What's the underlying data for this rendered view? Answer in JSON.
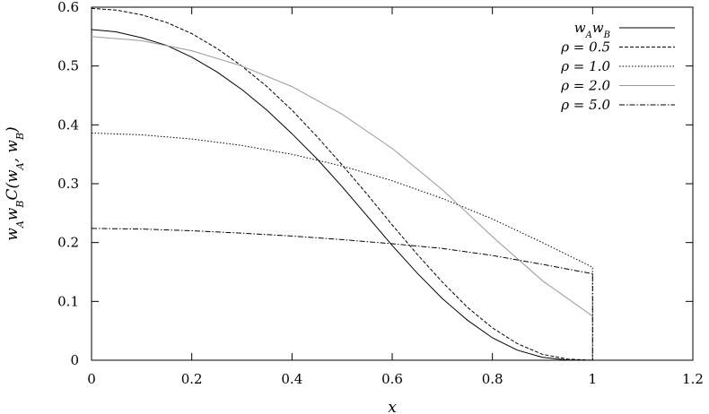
{
  "chart_data": {
    "type": "line",
    "title": "",
    "xlabel": "x",
    "ylabel": "w_A w_B C(w_A, w_B)",
    "xlim": [
      0,
      1.2
    ],
    "ylim": [
      0,
      0.6
    ],
    "xticks": [
      "0",
      "0.2",
      "0.4",
      "0.6",
      "0.8",
      "1",
      "1.2"
    ],
    "yticks": [
      "0",
      "0.1",
      "0.2",
      "0.3",
      "0.4",
      "0.5",
      "0.6"
    ],
    "grid": false,
    "legend_position": "top-right",
    "series": [
      {
        "name": "w_A w_B",
        "style": "solid",
        "color": "#000000",
        "x": [
          0,
          0.05,
          0.1,
          0.15,
          0.2,
          0.25,
          0.3,
          0.35,
          0.4,
          0.45,
          0.5,
          0.55,
          0.6,
          0.65,
          0.7,
          0.75,
          0.8,
          0.85,
          0.9,
          0.95,
          1.0
        ],
        "y": [
          0.562,
          0.558,
          0.548,
          0.535,
          0.515,
          0.49,
          0.46,
          0.425,
          0.385,
          0.342,
          0.295,
          0.245,
          0.195,
          0.148,
          0.105,
          0.068,
          0.038,
          0.017,
          0.005,
          0.0005,
          0
        ]
      },
      {
        "name": "ρ = 0.5",
        "style": "dashed",
        "color": "#000000",
        "x": [
          0,
          0.05,
          0.1,
          0.15,
          0.2,
          0.25,
          0.3,
          0.35,
          0.4,
          0.45,
          0.5,
          0.55,
          0.6,
          0.65,
          0.7,
          0.75,
          0.8,
          0.85,
          0.9,
          0.95,
          1.0
        ],
        "y": [
          0.598,
          0.595,
          0.587,
          0.574,
          0.555,
          0.53,
          0.5,
          0.465,
          0.425,
          0.38,
          0.332,
          0.282,
          0.23,
          0.18,
          0.133,
          0.09,
          0.055,
          0.028,
          0.01,
          0.002,
          0
        ]
      },
      {
        "name": "ρ = 1.0",
        "style": "dotted",
        "color": "#000000",
        "x": [
          0,
          0.1,
          0.2,
          0.3,
          0.4,
          0.5,
          0.6,
          0.7,
          0.8,
          0.9,
          1.0
        ],
        "y": [
          0.386,
          0.383,
          0.376,
          0.365,
          0.35,
          0.33,
          0.305,
          0.275,
          0.24,
          0.2,
          0.158
        ]
      },
      {
        "name": "ρ = 2.0",
        "style": "solid",
        "color": "#999999",
        "x": [
          0,
          0.1,
          0.2,
          0.3,
          0.4,
          0.5,
          0.6,
          0.7,
          0.8,
          0.9,
          1.0
        ],
        "y": [
          0.55,
          0.543,
          0.526,
          0.5,
          0.465,
          0.418,
          0.36,
          0.29,
          0.21,
          0.135,
          0.075
        ]
      },
      {
        "name": "ρ = 5.0",
        "style": "dashdot",
        "color": "#000000",
        "x": [
          0,
          0.1,
          0.2,
          0.3,
          0.4,
          0.5,
          0.6,
          0.7,
          0.8,
          0.9,
          1.0
        ],
        "y": [
          0.224,
          0.223,
          0.22,
          0.216,
          0.211,
          0.205,
          0.198,
          0.19,
          0.178,
          0.163,
          0.147
        ]
      }
    ]
  }
}
